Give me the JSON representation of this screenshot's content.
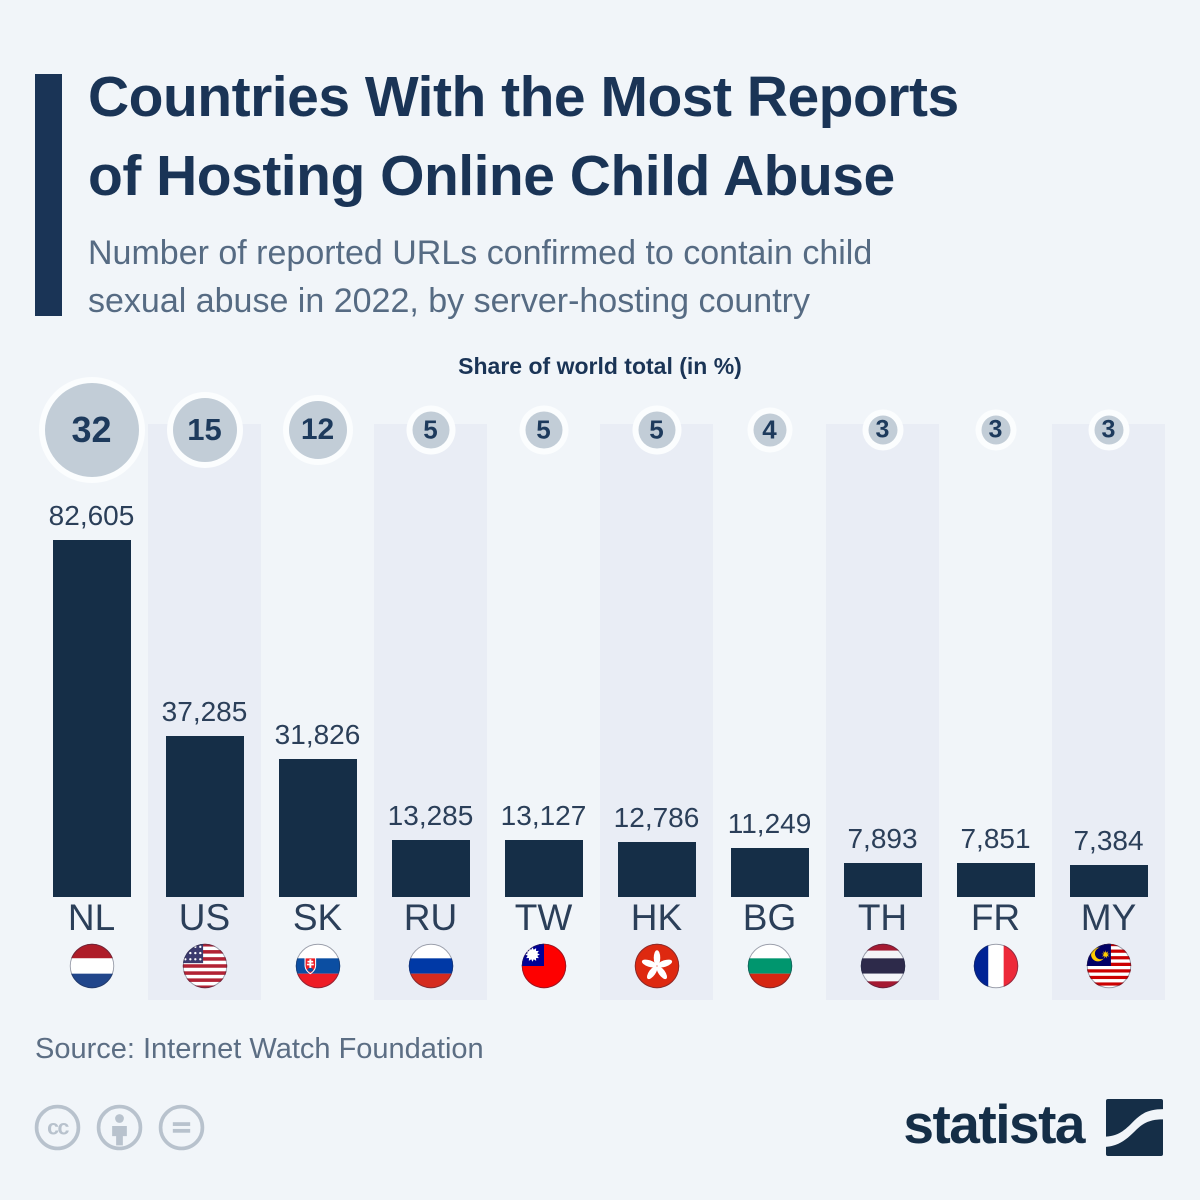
{
  "header": {
    "title_lines": [
      "Countries With the Most Reports",
      "of Hosting Online Child Abuse"
    ],
    "subtitle_lines": [
      "Number of reported URLs confirmed to contain child",
      "sexual abuse in 2022, by server-hosting country"
    ]
  },
  "chart_data": {
    "type": "bar",
    "title": "Countries With the Most Reports of Hosting Online Child Abuse",
    "subtitle": "Number of reported URLs confirmed to contain child sexual abuse in 2022, by server-hosting country",
    "share_axis_label": "Share of world total (in %)",
    "categories": [
      "NL",
      "US",
      "SK",
      "RU",
      "TW",
      "HK",
      "BG",
      "TH",
      "FR",
      "MY"
    ],
    "values": [
      82605,
      37285,
      31826,
      13285,
      13127,
      12786,
      11249,
      7893,
      7851,
      7384
    ],
    "shares": [
      32,
      15,
      12,
      5,
      5,
      5,
      4,
      3,
      3,
      3
    ],
    "flags": [
      "nl",
      "us",
      "sk",
      "ru",
      "tw",
      "hk",
      "bg",
      "th",
      "fr",
      "my"
    ],
    "ylim": [
      0,
      82605
    ],
    "grid": false,
    "legend": "none",
    "value_format": "thousands-comma"
  },
  "footer": {
    "source": "Source: Internet Watch Foundation",
    "license_icons": [
      "cc-icon",
      "cc-by-icon",
      "cc-nd-icon"
    ],
    "brand": "statista"
  },
  "colors": {
    "background": "#f1f5f9",
    "stripe": "#e9edf5",
    "bar": "#152e47",
    "title": "#1a3456",
    "subtitle": "#566b83",
    "circle": "#c2cdd7",
    "circle_text": "#1d3a5c",
    "label": "#2b3f59",
    "source": "#5c6e84",
    "cc": "#b8c2cd"
  }
}
